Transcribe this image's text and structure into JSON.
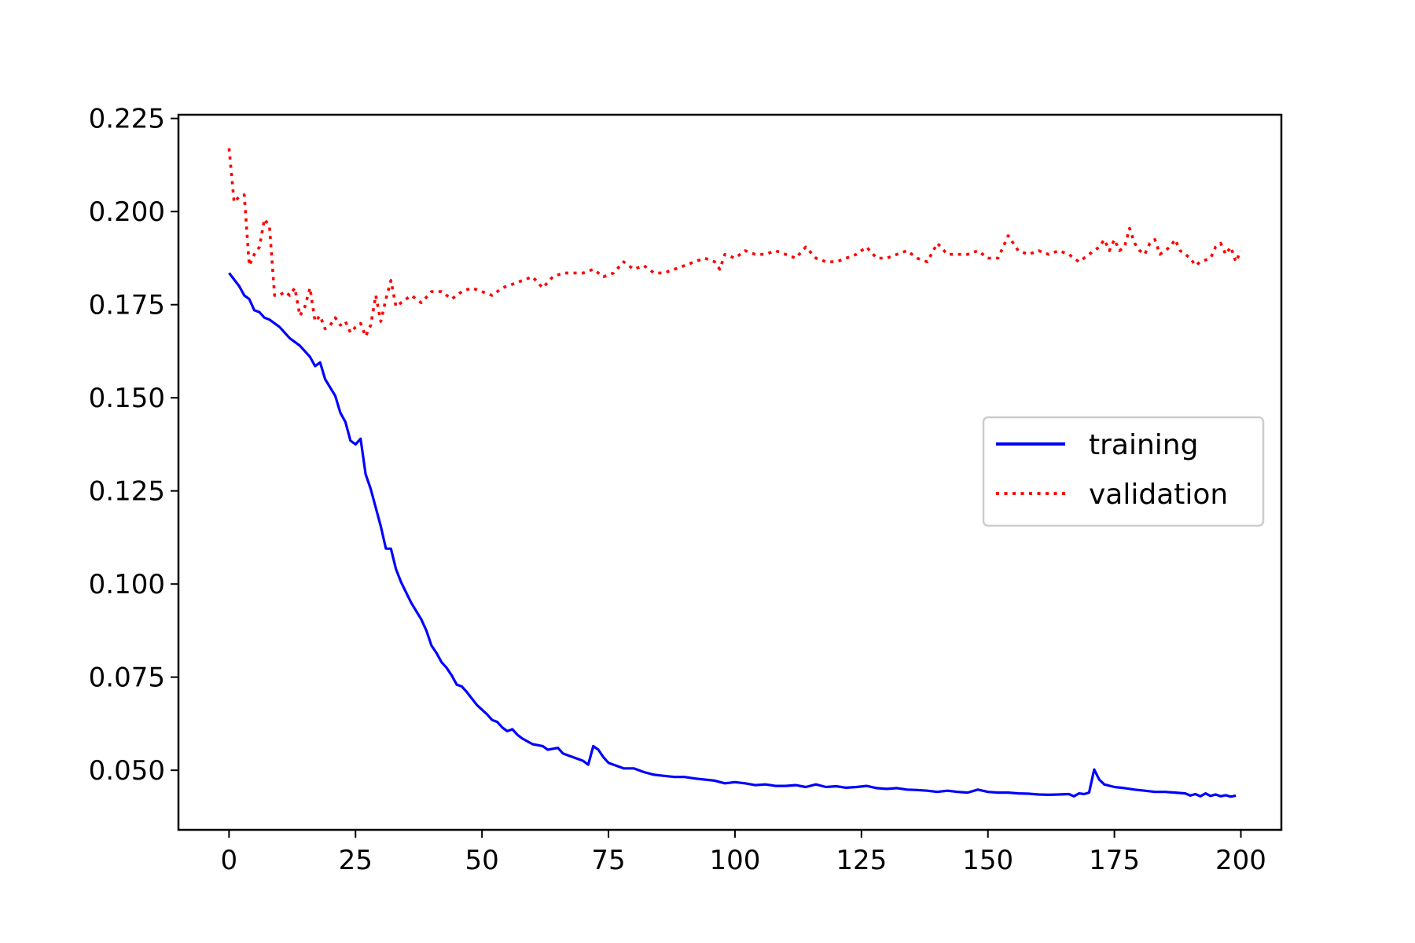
{
  "chart_data": {
    "type": "line",
    "title": "",
    "xlabel": "",
    "ylabel": "",
    "xlim": [
      -10,
      208
    ],
    "ylim": [
      0.034,
      0.226
    ],
    "x_ticks": [
      "0",
      "25",
      "50",
      "75",
      "100",
      "125",
      "150",
      "175",
      "200"
    ],
    "y_ticks": [
      "0.050",
      "0.075",
      "0.100",
      "0.125",
      "0.150",
      "0.175",
      "0.200",
      "0.225"
    ],
    "grid": false,
    "legend_position": "center-right",
    "series": [
      {
        "name": "training",
        "color": "#0000ff",
        "style": "solid",
        "points": [
          [
            0,
            0.1835
          ],
          [
            2,
            0.18
          ],
          [
            3,
            0.1775
          ],
          [
            4,
            0.1765
          ],
          [
            5,
            0.1735
          ],
          [
            6,
            0.173
          ],
          [
            7,
            0.1715
          ],
          [
            8,
            0.171
          ],
          [
            10,
            0.169
          ],
          [
            12,
            0.166
          ],
          [
            14,
            0.164
          ],
          [
            16,
            0.161
          ],
          [
            17,
            0.1585
          ],
          [
            18,
            0.1595
          ],
          [
            19,
            0.155
          ],
          [
            21,
            0.1505
          ],
          [
            22,
            0.146
          ],
          [
            23,
            0.1435
          ],
          [
            24,
            0.1385
          ],
          [
            25,
            0.1375
          ],
          [
            26,
            0.139
          ],
          [
            27,
            0.1295
          ],
          [
            28,
            0.1255
          ],
          [
            30,
            0.1155
          ],
          [
            31,
            0.1095
          ],
          [
            32,
            0.1095
          ],
          [
            33,
            0.104
          ],
          [
            34,
            0.1005
          ],
          [
            36,
            0.095
          ],
          [
            38,
            0.0905
          ],
          [
            39,
            0.0875
          ],
          [
            40,
            0.0835
          ],
          [
            41,
            0.0815
          ],
          [
            42,
            0.079
          ],
          [
            43,
            0.0775
          ],
          [
            44,
            0.0755
          ],
          [
            45,
            0.073
          ],
          [
            46,
            0.0725
          ],
          [
            47,
            0.071
          ],
          [
            49,
            0.0675
          ],
          [
            51,
            0.065
          ],
          [
            52,
            0.0635
          ],
          [
            53,
            0.063
          ],
          [
            54,
            0.0615
          ],
          [
            55,
            0.0605
          ],
          [
            56,
            0.061
          ],
          [
            57,
            0.0595
          ],
          [
            58,
            0.0585
          ],
          [
            60,
            0.057
          ],
          [
            62,
            0.0565
          ],
          [
            63,
            0.0555
          ],
          [
            65,
            0.056
          ],
          [
            66,
            0.0545
          ],
          [
            67,
            0.054
          ],
          [
            69,
            0.053
          ],
          [
            70,
            0.0525
          ],
          [
            71,
            0.0515
          ],
          [
            72,
            0.0565
          ],
          [
            73,
            0.0555
          ],
          [
            74,
            0.0535
          ],
          [
            75,
            0.052
          ],
          [
            76,
            0.0515
          ],
          [
            78,
            0.0505
          ],
          [
            80,
            0.0505
          ],
          [
            82,
            0.0495
          ],
          [
            84,
            0.0488
          ],
          [
            86,
            0.0485
          ],
          [
            88,
            0.0482
          ],
          [
            90,
            0.0482
          ],
          [
            92,
            0.0478
          ],
          [
            94,
            0.0475
          ],
          [
            96,
            0.0472
          ],
          [
            98,
            0.0465
          ],
          [
            100,
            0.0468
          ],
          [
            102,
            0.0465
          ],
          [
            104,
            0.046
          ],
          [
            106,
            0.0462
          ],
          [
            108,
            0.0458
          ],
          [
            110,
            0.0458
          ],
          [
            112,
            0.046
          ],
          [
            114,
            0.0455
          ],
          [
            116,
            0.0462
          ],
          [
            118,
            0.0455
          ],
          [
            120,
            0.0457
          ],
          [
            122,
            0.0453
          ],
          [
            124,
            0.0455
          ],
          [
            126,
            0.0458
          ],
          [
            128,
            0.0452
          ],
          [
            130,
            0.045
          ],
          [
            132,
            0.0452
          ],
          [
            134,
            0.0448
          ],
          [
            136,
            0.0447
          ],
          [
            138,
            0.0445
          ],
          [
            140,
            0.0442
          ],
          [
            142,
            0.0445
          ],
          [
            144,
            0.0442
          ],
          [
            146,
            0.044
          ],
          [
            148,
            0.0448
          ],
          [
            150,
            0.0442
          ],
          [
            152,
            0.044
          ],
          [
            154,
            0.044
          ],
          [
            156,
            0.0438
          ],
          [
            158,
            0.0437
          ],
          [
            160,
            0.0435
          ],
          [
            162,
            0.0434
          ],
          [
            164,
            0.0435
          ],
          [
            166,
            0.0436
          ],
          [
            167,
            0.043
          ],
          [
            168,
            0.0438
          ],
          [
            169,
            0.0436
          ],
          [
            170,
            0.044
          ],
          [
            171,
            0.0502
          ],
          [
            172,
            0.0475
          ],
          [
            173,
            0.0462
          ],
          [
            175,
            0.0455
          ],
          [
            177,
            0.0452
          ],
          [
            179,
            0.0448
          ],
          [
            181,
            0.0445
          ],
          [
            183,
            0.0442
          ],
          [
            185,
            0.0442
          ],
          [
            187,
            0.044
          ],
          [
            189,
            0.0438
          ],
          [
            190,
            0.0432
          ],
          [
            191,
            0.0436
          ],
          [
            192,
            0.043
          ],
          [
            193,
            0.0438
          ],
          [
            194,
            0.0431
          ],
          [
            195,
            0.0435
          ],
          [
            196,
            0.043
          ],
          [
            197,
            0.0433
          ],
          [
            198,
            0.0429
          ],
          [
            199,
            0.0432
          ]
        ]
      },
      {
        "name": "validation",
        "color": "#ff0000",
        "style": "dotted",
        "points": [
          [
            0,
            0.217
          ],
          [
            1,
            0.2025
          ],
          [
            2,
            0.204
          ],
          [
            3,
            0.2045
          ],
          [
            4,
            0.1855
          ],
          [
            5,
            0.1885
          ],
          [
            6,
            0.1905
          ],
          [
            7,
            0.198
          ],
          [
            8,
            0.196
          ],
          [
            9,
            0.1775
          ],
          [
            10,
            0.1775
          ],
          [
            11,
            0.1785
          ],
          [
            12,
            0.1775
          ],
          [
            13,
            0.1795
          ],
          [
            14,
            0.172
          ],
          [
            15,
            0.1745
          ],
          [
            16,
            0.1795
          ],
          [
            17,
            0.1705
          ],
          [
            18,
            0.172
          ],
          [
            19,
            0.1685
          ],
          [
            20,
            0.1695
          ],
          [
            21,
            0.1715
          ],
          [
            22,
            0.1695
          ],
          [
            23,
            0.1705
          ],
          [
            24,
            0.1675
          ],
          [
            25,
            0.169
          ],
          [
            26,
            0.17
          ],
          [
            27,
            0.1665
          ],
          [
            28,
            0.1695
          ],
          [
            29,
            0.1775
          ],
          [
            30,
            0.1705
          ],
          [
            31,
            0.1765
          ],
          [
            32,
            0.1815
          ],
          [
            33,
            0.1745
          ],
          [
            34,
            0.1755
          ],
          [
            35,
            0.1765
          ],
          [
            36,
            0.1775
          ],
          [
            38,
            0.1755
          ],
          [
            40,
            0.1785
          ],
          [
            42,
            0.1785
          ],
          [
            44,
            0.1765
          ],
          [
            46,
            0.1785
          ],
          [
            48,
            0.1795
          ],
          [
            50,
            0.1785
          ],
          [
            52,
            0.1775
          ],
          [
            54,
            0.1795
          ],
          [
            56,
            0.1805
          ],
          [
            58,
            0.1815
          ],
          [
            60,
            0.1825
          ],
          [
            62,
            0.1795
          ],
          [
            64,
            0.1825
          ],
          [
            66,
            0.1835
          ],
          [
            68,
            0.1835
          ],
          [
            70,
            0.1835
          ],
          [
            72,
            0.1845
          ],
          [
            74,
            0.1825
          ],
          [
            76,
            0.1835
          ],
          [
            78,
            0.1865
          ],
          [
            80,
            0.1845
          ],
          [
            82,
            0.1855
          ],
          [
            84,
            0.1835
          ],
          [
            86,
            0.1835
          ],
          [
            88,
            0.1845
          ],
          [
            90,
            0.1855
          ],
          [
            92,
            0.1865
          ],
          [
            94,
            0.1875
          ],
          [
            96,
            0.1865
          ],
          [
            97,
            0.1845
          ],
          [
            98,
            0.1885
          ],
          [
            100,
            0.1875
          ],
          [
            102,
            0.1895
          ],
          [
            104,
            0.1885
          ],
          [
            106,
            0.1885
          ],
          [
            108,
            0.1895
          ],
          [
            110,
            0.1885
          ],
          [
            112,
            0.1875
          ],
          [
            114,
            0.1905
          ],
          [
            116,
            0.1875
          ],
          [
            118,
            0.1865
          ],
          [
            120,
            0.1865
          ],
          [
            122,
            0.1875
          ],
          [
            124,
            0.1885
          ],
          [
            126,
            0.1905
          ],
          [
            128,
            0.1875
          ],
          [
            130,
            0.1875
          ],
          [
            132,
            0.1885
          ],
          [
            134,
            0.1895
          ],
          [
            136,
            0.1875
          ],
          [
            138,
            0.1865
          ],
          [
            140,
            0.1915
          ],
          [
            142,
            0.1885
          ],
          [
            144,
            0.1885
          ],
          [
            146,
            0.1885
          ],
          [
            148,
            0.1895
          ],
          [
            150,
            0.1875
          ],
          [
            152,
            0.1875
          ],
          [
            154,
            0.1935
          ],
          [
            156,
            0.1895
          ],
          [
            158,
            0.1885
          ],
          [
            160,
            0.1895
          ],
          [
            162,
            0.1885
          ],
          [
            164,
            0.1895
          ],
          [
            166,
            0.1885
          ],
          [
            168,
            0.1865
          ],
          [
            170,
            0.1885
          ],
          [
            172,
            0.1905
          ],
          [
            173,
            0.1925
          ],
          [
            174,
            0.1895
          ],
          [
            175,
            0.1925
          ],
          [
            176,
            0.1895
          ],
          [
            177,
            0.1905
          ],
          [
            178,
            0.1955
          ],
          [
            179,
            0.1915
          ],
          [
            180,
            0.1895
          ],
          [
            181,
            0.1885
          ],
          [
            182,
            0.1915
          ],
          [
            183,
            0.1925
          ],
          [
            184,
            0.1885
          ],
          [
            186,
            0.1905
          ],
          [
            187,
            0.1925
          ],
          [
            188,
            0.1895
          ],
          [
            189,
            0.1885
          ],
          [
            190,
            0.1875
          ],
          [
            191,
            0.1855
          ],
          [
            192,
            0.1865
          ],
          [
            194,
            0.1875
          ],
          [
            195,
            0.1905
          ],
          [
            196,
            0.1915
          ],
          [
            197,
            0.1885
          ],
          [
            198,
            0.1905
          ],
          [
            199,
            0.1865
          ],
          [
            200,
            0.1895
          ]
        ]
      }
    ]
  }
}
